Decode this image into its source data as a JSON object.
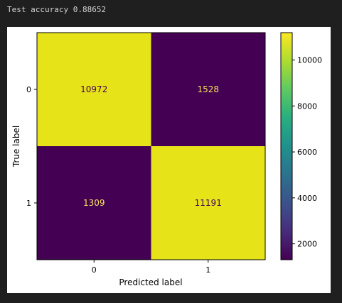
{
  "output": {
    "accuracy_text": "Test accuracy 0.88652"
  },
  "chart_data": {
    "type": "heatmap",
    "title": "",
    "xlabel": "Predicted label",
    "ylabel": "True label",
    "x_categories": [
      "0",
      "1"
    ],
    "y_categories": [
      "0",
      "1"
    ],
    "values": [
      [
        10972,
        1528
      ],
      [
        1309,
        11191
      ]
    ],
    "colormap": "viridis",
    "colorbar": {
      "min": 1309,
      "max": 11191,
      "ticks": [
        2000,
        4000,
        6000,
        8000,
        10000
      ]
    },
    "colors": {
      "high": "#e6e419",
      "low": "#440154",
      "text_on_high": "#440154",
      "text_on_low": "#f4e25b"
    }
  }
}
